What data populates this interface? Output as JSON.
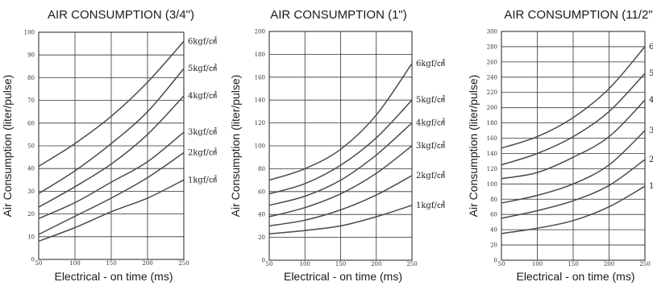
{
  "chart_data": [
    {
      "type": "line",
      "title": "AIR CONSUMPTION (3/4\")",
      "xlabel": "Electrical - on time (ms)",
      "ylabel": "Air Consumption (liter/pulse)",
      "xlim": [
        50,
        250
      ],
      "ylim": [
        0,
        100
      ],
      "xticks": [
        50,
        100,
        150,
        200,
        250
      ],
      "yticks": [
        0,
        10,
        20,
        30,
        40,
        50,
        60,
        70,
        80,
        90,
        100
      ],
      "grid": true,
      "x": [
        50,
        100,
        150,
        200,
        250
      ],
      "series": [
        {
          "name": "6kgf/㎠",
          "values": [
            41,
            51,
            63,
            78,
            96
          ]
        },
        {
          "name": "5kgf/㎠",
          "values": [
            29,
            39,
            51,
            65,
            84
          ]
        },
        {
          "name": "4kgf/㎠",
          "values": [
            23,
            32,
            42,
            55,
            72
          ]
        },
        {
          "name": "3kgf/㎠",
          "values": [
            18,
            25,
            34,
            43,
            56
          ]
        },
        {
          "name": "2kgf/㎠",
          "values": [
            11,
            19,
            27,
            36,
            47
          ]
        },
        {
          "name": "1kgf/㎠",
          "values": [
            8,
            14,
            21,
            27,
            35
          ]
        }
      ],
      "series_color": "#4a4a4a"
    },
    {
      "type": "line",
      "title": "AIR CONSUMPTION (1\")",
      "xlabel": "Electrical - on time (ms)",
      "ylabel": "Air Consumption (liter/pulse)",
      "xlim": [
        50,
        250
      ],
      "ylim": [
        0,
        200
      ],
      "xticks": [
        50,
        100,
        150,
        200,
        250
      ],
      "yticks": [
        0,
        20,
        40,
        60,
        80,
        100,
        120,
        140,
        160,
        180,
        200
      ],
      "grid": true,
      "x": [
        50,
        100,
        150,
        200,
        250
      ],
      "series": [
        {
          "name": "6kgf/㎠",
          "values": [
            70,
            80,
            97,
            127,
            172
          ]
        },
        {
          "name": "5kgf/㎠",
          "values": [
            58,
            67,
            83,
            107,
            140
          ]
        },
        {
          "name": "4kgf/㎠",
          "values": [
            48,
            56,
            70,
            92,
            120
          ]
        },
        {
          "name": "3kgf/㎠",
          "values": [
            38,
            46,
            58,
            76,
            100
          ]
        },
        {
          "name": "2kgf/㎠",
          "values": [
            30,
            35,
            44,
            57,
            74
          ]
        },
        {
          "name": "1kgf/㎠",
          "values": [
            23,
            26,
            30,
            38,
            48
          ]
        }
      ],
      "series_color": "#4a4a4a"
    },
    {
      "type": "line",
      "title": "AIR CONSUMPTION (11/2\")",
      "xlabel": "Electrical - on time (ms)",
      "ylabel": "Air Consumption (liter/pulse)",
      "xlim": [
        50,
        250
      ],
      "ylim": [
        0,
        300
      ],
      "xticks": [
        50,
        100,
        150,
        200,
        250
      ],
      "yticks": [
        0,
        20,
        40,
        60,
        80,
        100,
        120,
        140,
        160,
        180,
        200,
        220,
        240,
        260,
        280,
        300
      ],
      "grid": true,
      "x": [
        50,
        100,
        150,
        200,
        250
      ],
      "series": [
        {
          "name": "6",
          "values": [
            147,
            162,
            187,
            225,
            280
          ]
        },
        {
          "name": "5",
          "values": [
            125,
            140,
            162,
            195,
            245
          ]
        },
        {
          "name": "4",
          "values": [
            107,
            115,
            135,
            162,
            210
          ]
        },
        {
          "name": "3",
          "values": [
            75,
            85,
            100,
            125,
            170
          ]
        },
        {
          "name": "2",
          "values": [
            55,
            65,
            78,
            98,
            132
          ]
        },
        {
          "name": "1",
          "values": [
            35,
            42,
            52,
            70,
            97
          ]
        }
      ],
      "series_color": "#4a4a4a"
    }
  ]
}
